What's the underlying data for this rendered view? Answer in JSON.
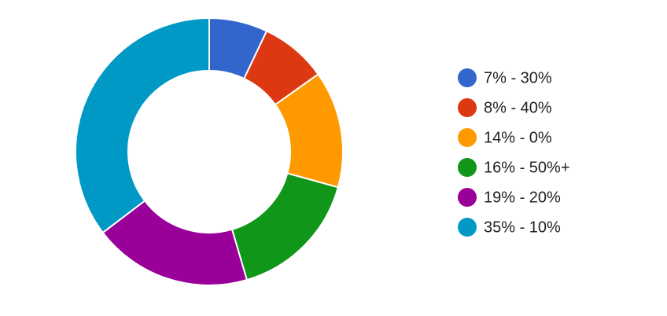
{
  "chart_data": {
    "type": "donut",
    "categories": [
      "7% - 30%",
      "8% - 40%",
      "14% - 0%",
      "16% - 50%+",
      "19% - 20%",
      "35% - 10%"
    ],
    "values": [
      7,
      8,
      14,
      16,
      19,
      35
    ],
    "colors": [
      "#3366cc",
      "#dc3912",
      "#ff9900",
      "#109618",
      "#990099",
      "#0099c6"
    ],
    "legend": "right"
  }
}
